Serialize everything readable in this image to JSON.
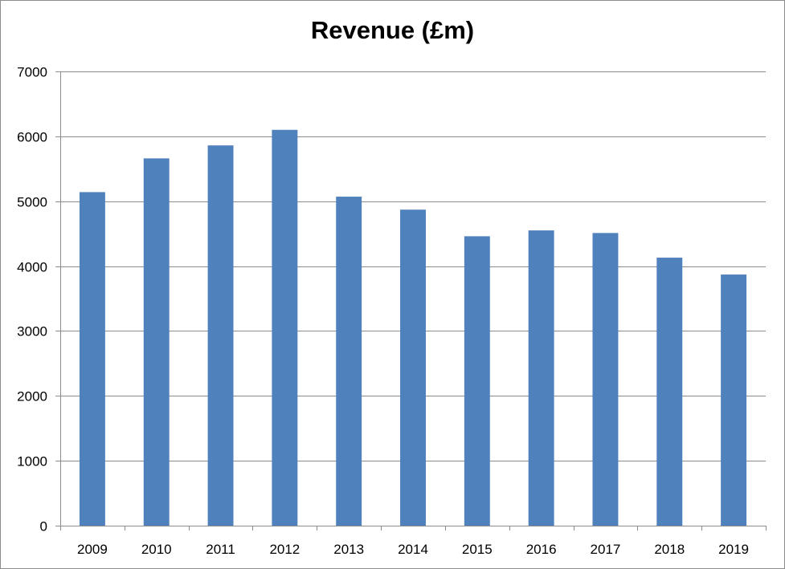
{
  "chart_data": {
    "type": "bar",
    "title": "Revenue (£m)",
    "xlabel": "",
    "ylabel": "",
    "categories": [
      "2009",
      "2010",
      "2011",
      "2012",
      "2013",
      "2014",
      "2015",
      "2016",
      "2017",
      "2018",
      "2019"
    ],
    "values": [
      5140,
      5660,
      5860,
      6100,
      5070,
      4870,
      4460,
      4550,
      4510,
      4130,
      3870
    ],
    "ylim": [
      0,
      7000
    ],
    "yticks": [
      0,
      1000,
      2000,
      3000,
      4000,
      5000,
      6000,
      7000
    ],
    "grid": true,
    "legend": "none",
    "colors": {
      "bar": "#4f81bd",
      "grid": "#8c8c8c",
      "axis": "#8c8c8c"
    }
  }
}
